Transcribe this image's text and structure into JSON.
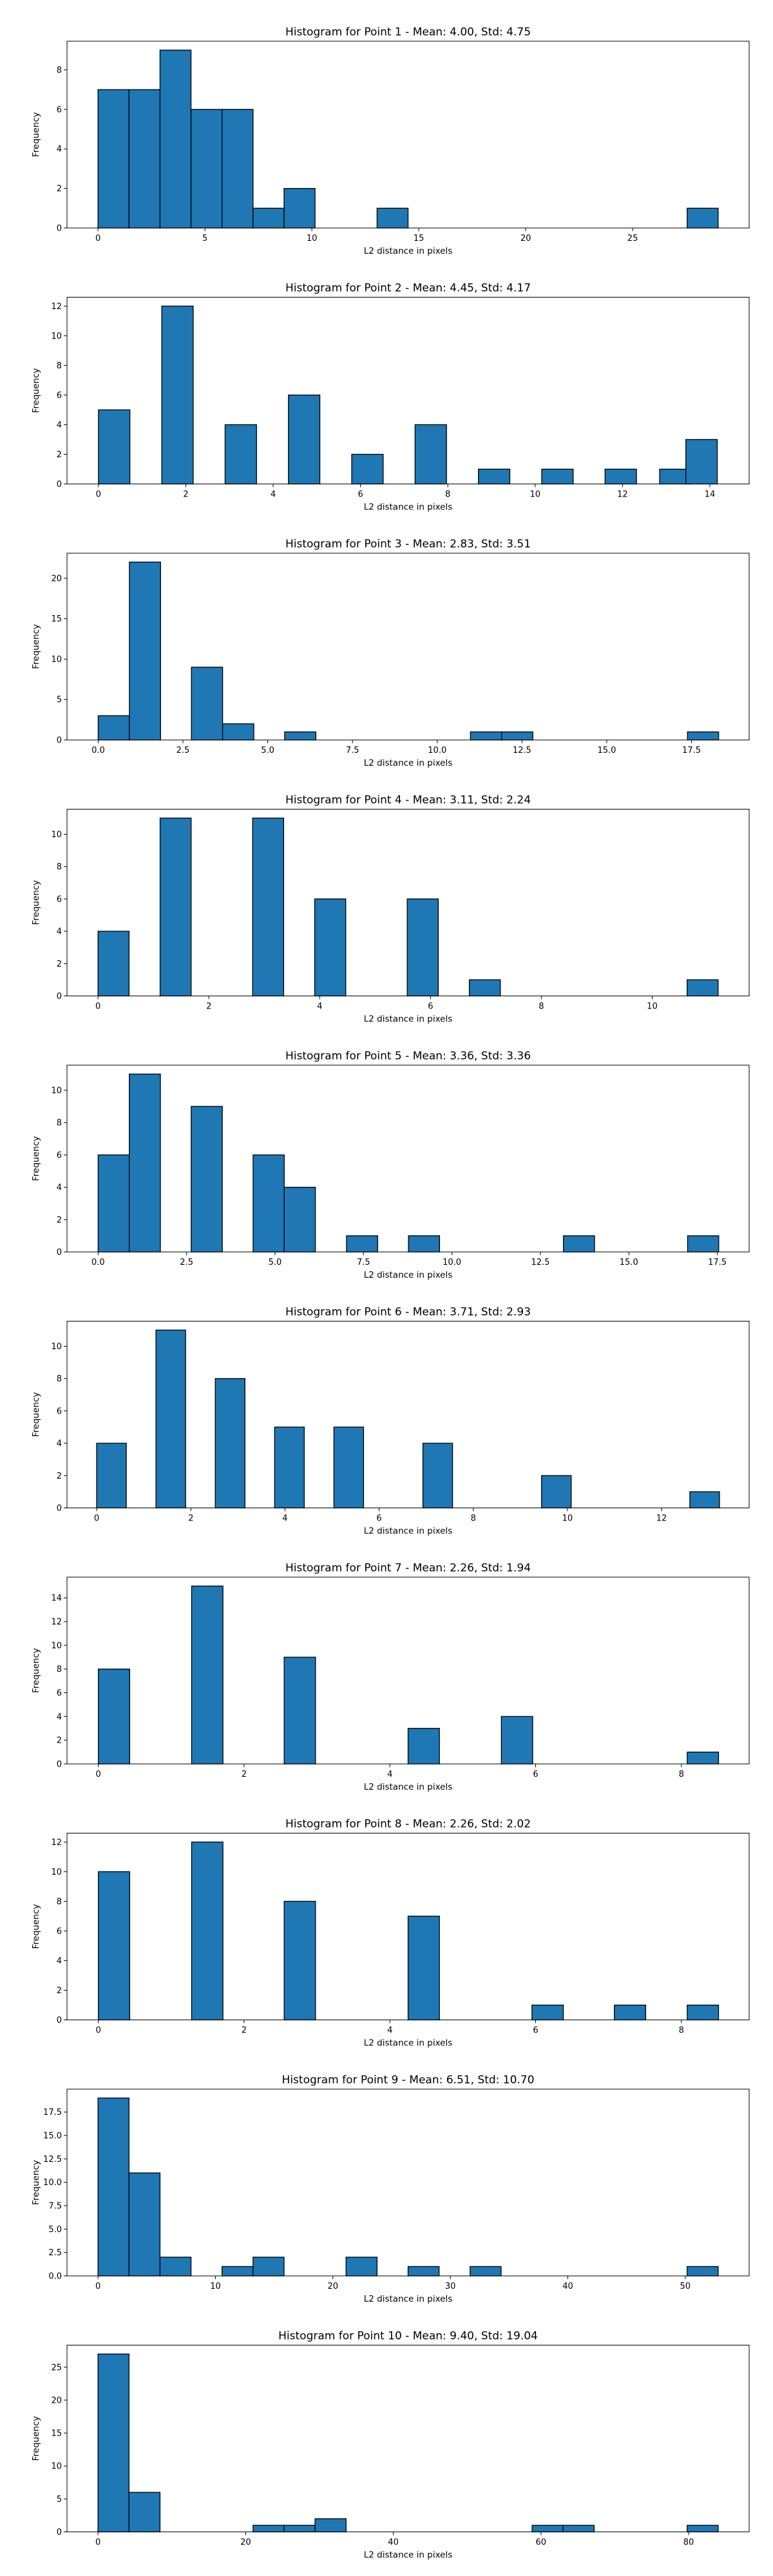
{
  "chart_data": [
    {
      "type": "bar",
      "title": "Histogram for Point 1 - Mean: 4.00, Std: 4.75",
      "xlabel": "L2 distance in pixels",
      "ylabel": "Frequency",
      "bar_color": "#1f77b4",
      "edge_color": "#000000",
      "bin_width": 1.45,
      "bins": [
        {
          "x": 0,
          "value": 7
        },
        {
          "x": 1.45,
          "value": 7
        },
        {
          "x": 2.9,
          "value": 9
        },
        {
          "x": 4.35,
          "value": 6
        },
        {
          "x": 5.8,
          "value": 6
        },
        {
          "x": 7.25,
          "value": 1
        },
        {
          "x": 8.7,
          "value": 2
        },
        {
          "x": 13.05,
          "value": 1
        },
        {
          "x": 27.55,
          "value": 1
        }
      ],
      "xlim": [
        -1.45,
        30.45
      ],
      "ylim": [
        0,
        9.45
      ],
      "xticks": [
        0,
        5,
        10,
        15,
        20,
        25
      ],
      "xtick_labels": [
        "0",
        "5",
        "10",
        "15",
        "20",
        "25"
      ],
      "yticks": [
        0,
        2,
        4,
        6,
        8
      ],
      "ytick_labels": [
        "0",
        "2",
        "4",
        "6",
        "8"
      ]
    },
    {
      "type": "bar",
      "title": "Histogram for Point 2 - Mean: 4.45, Std: 4.17",
      "xlabel": "L2 distance in pixels",
      "ylabel": "Frequency",
      "bar_color": "#1f77b4",
      "edge_color": "#000000",
      "bin_width": 0.72,
      "bins": [
        {
          "x": 0,
          "value": 5
        },
        {
          "x": 1.45,
          "value": 12
        },
        {
          "x": 2.9,
          "value": 4
        },
        {
          "x": 4.35,
          "value": 6
        },
        {
          "x": 5.8,
          "value": 2
        },
        {
          "x": 7.25,
          "value": 4
        },
        {
          "x": 8.7,
          "value": 1
        },
        {
          "x": 10.15,
          "value": 1
        },
        {
          "x": 11.6,
          "value": 1
        },
        {
          "x": 12.85,
          "value": 1
        },
        {
          "x": 13.45,
          "value": 3
        }
      ],
      "xlim": [
        -0.72,
        14.9
      ],
      "ylim": [
        0,
        12.6
      ],
      "xticks": [
        0,
        2,
        4,
        6,
        8,
        10,
        12,
        14
      ],
      "xtick_labels": [
        "0",
        "2",
        "4",
        "6",
        "8",
        "10",
        "12",
        "14"
      ],
      "yticks": [
        0,
        2,
        4,
        6,
        8,
        10,
        12
      ],
      "ytick_labels": [
        "0",
        "2",
        "4",
        "6",
        "8",
        "10",
        "12"
      ]
    },
    {
      "type": "bar",
      "title": "Histogram for Point 3 - Mean: 2.83, Std: 3.51",
      "xlabel": "L2 distance in pixels",
      "ylabel": "Frequency",
      "bar_color": "#1f77b4",
      "edge_color": "#000000",
      "bin_width": 0.92,
      "bins": [
        {
          "x": 0,
          "value": 3
        },
        {
          "x": 0.92,
          "value": 22
        },
        {
          "x": 2.75,
          "value": 9
        },
        {
          "x": 3.67,
          "value": 2
        },
        {
          "x": 5.5,
          "value": 1
        },
        {
          "x": 10.98,
          "value": 1
        },
        {
          "x": 11.9,
          "value": 1
        },
        {
          "x": 17.38,
          "value": 1
        }
      ],
      "xlim": [
        -0.92,
        19.2
      ],
      "ylim": [
        0,
        23.1
      ],
      "xticks": [
        0,
        2.5,
        5,
        7.5,
        10,
        12.5,
        15,
        17.5
      ],
      "xtick_labels": [
        "0.0",
        "2.5",
        "5.0",
        "7.5",
        "10.0",
        "12.5",
        "15.0",
        "17.5"
      ],
      "yticks": [
        0,
        5,
        10,
        15,
        20
      ],
      "ytick_labels": [
        "0",
        "5",
        "10",
        "15",
        "20"
      ]
    },
    {
      "type": "bar",
      "title": "Histogram for Point 4 - Mean: 3.11, Std: 2.24",
      "xlabel": "L2 distance in pixels",
      "ylabel": "Frequency",
      "bar_color": "#1f77b4",
      "edge_color": "#000000",
      "bin_width": 0.56,
      "bins": [
        {
          "x": 0,
          "value": 4
        },
        {
          "x": 1.12,
          "value": 11
        },
        {
          "x": 2.79,
          "value": 11
        },
        {
          "x": 3.91,
          "value": 6
        },
        {
          "x": 5.58,
          "value": 6
        },
        {
          "x": 6.7,
          "value": 1
        },
        {
          "x": 10.63,
          "value": 1
        }
      ],
      "xlim": [
        -0.56,
        11.75
      ],
      "ylim": [
        0,
        11.55
      ],
      "xticks": [
        0,
        2,
        4,
        6,
        8,
        10
      ],
      "xtick_labels": [
        "0",
        "2",
        "4",
        "6",
        "8",
        "10"
      ],
      "yticks": [
        0,
        2,
        4,
        6,
        8,
        10
      ],
      "ytick_labels": [
        "0",
        "2",
        "4",
        "6",
        "8",
        "10"
      ]
    },
    {
      "type": "bar",
      "title": "Histogram for Point 5 - Mean: 3.36, Std: 3.36",
      "xlabel": "L2 distance in pixels",
      "ylabel": "Frequency",
      "bar_color": "#1f77b4",
      "edge_color": "#000000",
      "bin_width": 0.88,
      "bins": [
        {
          "x": 0,
          "value": 6
        },
        {
          "x": 0.88,
          "value": 11
        },
        {
          "x": 2.63,
          "value": 9
        },
        {
          "x": 4.38,
          "value": 6
        },
        {
          "x": 5.26,
          "value": 4
        },
        {
          "x": 7.02,
          "value": 1
        },
        {
          "x": 8.77,
          "value": 1
        },
        {
          "x": 13.15,
          "value": 1
        },
        {
          "x": 16.66,
          "value": 1
        }
      ],
      "xlim": [
        -0.88,
        18.4
      ],
      "ylim": [
        0,
        11.55
      ],
      "xticks": [
        0,
        2.5,
        5,
        7.5,
        10,
        12.5,
        15,
        17.5
      ],
      "xtick_labels": [
        "0.0",
        "2.5",
        "5.0",
        "7.5",
        "10.0",
        "12.5",
        "15.0",
        "17.5"
      ],
      "yticks": [
        0,
        2,
        4,
        6,
        8,
        10
      ],
      "ytick_labels": [
        "0",
        "2",
        "4",
        "6",
        "8",
        "10"
      ]
    },
    {
      "type": "bar",
      "title": "Histogram for Point 6 - Mean: 3.71, Std: 2.93",
      "xlabel": "L2 distance in pixels",
      "ylabel": "Frequency",
      "bar_color": "#1f77b4",
      "edge_color": "#000000",
      "bin_width": 0.63,
      "bins": [
        {
          "x": 0,
          "value": 4
        },
        {
          "x": 1.26,
          "value": 11
        },
        {
          "x": 2.52,
          "value": 8
        },
        {
          "x": 3.78,
          "value": 5
        },
        {
          "x": 5.04,
          "value": 5
        },
        {
          "x": 6.93,
          "value": 4
        },
        {
          "x": 9.45,
          "value": 2
        },
        {
          "x": 12.6,
          "value": 1
        }
      ],
      "xlim": [
        -0.63,
        13.86
      ],
      "ylim": [
        0,
        11.55
      ],
      "xticks": [
        0,
        2,
        4,
        6,
        8,
        10,
        12
      ],
      "xtick_labels": [
        "0",
        "2",
        "4",
        "6",
        "8",
        "10",
        "12"
      ],
      "yticks": [
        0,
        2,
        4,
        6,
        8,
        10
      ],
      "ytick_labels": [
        "0",
        "2",
        "4",
        "6",
        "8",
        "10"
      ]
    },
    {
      "type": "bar",
      "title": "Histogram for Point 7 - Mean: 2.26, Std: 1.94",
      "xlabel": "L2 distance in pixels",
      "ylabel": "Frequency",
      "bar_color": "#1f77b4",
      "edge_color": "#000000",
      "bin_width": 0.43,
      "bins": [
        {
          "x": 0,
          "value": 8
        },
        {
          "x": 1.28,
          "value": 15
        },
        {
          "x": 2.55,
          "value": 9
        },
        {
          "x": 4.25,
          "value": 3
        },
        {
          "x": 5.53,
          "value": 4
        },
        {
          "x": 8.08,
          "value": 1
        }
      ],
      "xlim": [
        -0.43,
        8.93
      ],
      "ylim": [
        0,
        15.75
      ],
      "xticks": [
        0,
        2,
        4,
        6,
        8
      ],
      "xtick_labels": [
        "0",
        "2",
        "4",
        "6",
        "8"
      ],
      "yticks": [
        0,
        2,
        4,
        6,
        8,
        10,
        12,
        14
      ],
      "ytick_labels": [
        "0",
        "2",
        "4",
        "6",
        "8",
        "10",
        "12",
        "14"
      ]
    },
    {
      "type": "bar",
      "title": "Histogram for Point 8 - Mean: 2.26, Std: 2.02",
      "xlabel": "L2 distance in pixels",
      "ylabel": "Frequency",
      "bar_color": "#1f77b4",
      "edge_color": "#000000",
      "bin_width": 0.43,
      "bins": [
        {
          "x": 0,
          "value": 10
        },
        {
          "x": 1.28,
          "value": 12
        },
        {
          "x": 2.55,
          "value": 8
        },
        {
          "x": 4.25,
          "value": 7
        },
        {
          "x": 5.95,
          "value": 1
        },
        {
          "x": 7.08,
          "value": 1
        },
        {
          "x": 8.08,
          "value": 1
        }
      ],
      "xlim": [
        -0.43,
        8.93
      ],
      "ylim": [
        0,
        12.6
      ],
      "xticks": [
        0,
        2,
        4,
        6,
        8
      ],
      "xtick_labels": [
        "0",
        "2",
        "4",
        "6",
        "8"
      ],
      "yticks": [
        0,
        2,
        4,
        6,
        8,
        10,
        12
      ],
      "ytick_labels": [
        "0",
        "2",
        "4",
        "6",
        "8",
        "10",
        "12"
      ]
    },
    {
      "type": "bar",
      "title": "Histogram for Point 9 - Mean: 6.51, Std: 10.70",
      "xlabel": "L2 distance in pixels",
      "ylabel": "Frequency",
      "bar_color": "#1f77b4",
      "edge_color": "#000000",
      "bin_width": 2.64,
      "bins": [
        {
          "x": 0,
          "value": 19
        },
        {
          "x": 2.64,
          "value": 11
        },
        {
          "x": 5.28,
          "value": 2
        },
        {
          "x": 10.56,
          "value": 1
        },
        {
          "x": 13.2,
          "value": 2
        },
        {
          "x": 21.12,
          "value": 2
        },
        {
          "x": 26.4,
          "value": 1
        },
        {
          "x": 31.68,
          "value": 1
        },
        {
          "x": 50.16,
          "value": 1
        }
      ],
      "xlim": [
        -2.64,
        55.44
      ],
      "ylim": [
        0,
        19.95
      ],
      "xticks": [
        0,
        10,
        20,
        30,
        40,
        50
      ],
      "xtick_labels": [
        "0",
        "10",
        "20",
        "30",
        "40",
        "50"
      ],
      "yticks": [
        0,
        2.5,
        5,
        7.5,
        10,
        12.5,
        15,
        17.5
      ],
      "ytick_labels": [
        "0.0",
        "2.5",
        "5.0",
        "7.5",
        "10.0",
        "12.5",
        "15.0",
        "17.5"
      ]
    },
    {
      "type": "bar",
      "title": "Histogram for Point 10 - Mean: 9.40, Std: 19.04",
      "xlabel": "L2 distance in pixels",
      "ylabel": "Frequency",
      "bar_color": "#1f77b4",
      "edge_color": "#000000",
      "bin_width": 4.2,
      "bins": [
        {
          "x": 0,
          "value": 27
        },
        {
          "x": 4.2,
          "value": 6
        },
        {
          "x": 21,
          "value": 1
        },
        {
          "x": 25.2,
          "value": 1
        },
        {
          "x": 29.4,
          "value": 2
        },
        {
          "x": 58.8,
          "value": 1
        },
        {
          "x": 63,
          "value": 1
        },
        {
          "x": 79.8,
          "value": 1
        }
      ],
      "xlim": [
        -4.2,
        88.2
      ],
      "ylim": [
        0,
        28.35
      ],
      "xticks": [
        0,
        20,
        40,
        60,
        80
      ],
      "xtick_labels": [
        "0",
        "20",
        "40",
        "60",
        "80"
      ],
      "yticks": [
        0,
        5,
        10,
        15,
        20,
        25
      ],
      "ytick_labels": [
        "0",
        "5",
        "10",
        "15",
        "20",
        "25"
      ]
    }
  ]
}
